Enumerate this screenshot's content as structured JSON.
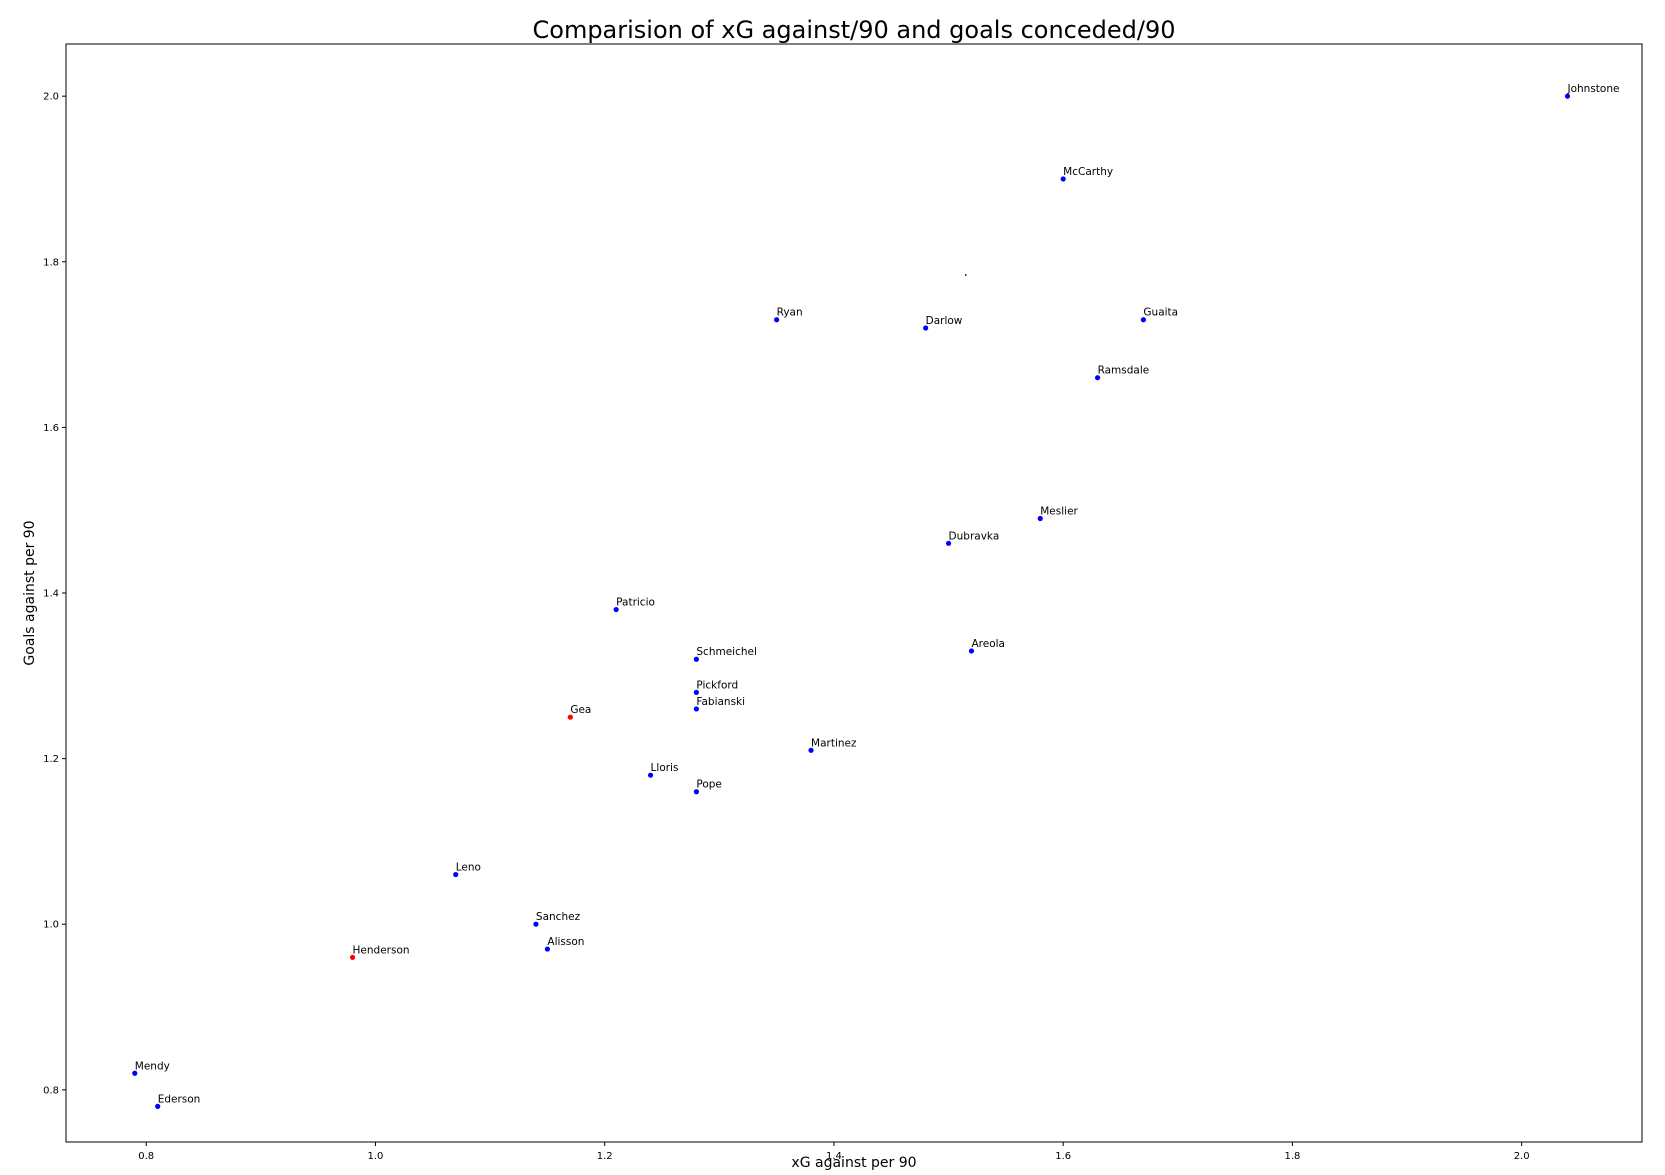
{
  "chart_data": {
    "type": "scatter",
    "title": "Comparision of xG against/90 and goals conceded/90",
    "xlabel": "xG against per 90",
    "ylabel": "Goals against per 90",
    "xlim": [
      0.73,
      2.105
    ],
    "ylim": [
      0.737,
      2.063
    ],
    "xticks": [
      {
        "value": 0.8,
        "label": "0.8"
      },
      {
        "value": 1.0,
        "label": "1.0"
      },
      {
        "value": 1.2,
        "label": "1.2"
      },
      {
        "value": 1.4,
        "label": "1.4"
      },
      {
        "value": 1.6,
        "label": "1.6"
      },
      {
        "value": 1.8,
        "label": "1.8"
      },
      {
        "value": 2.0,
        "label": "2.0"
      }
    ],
    "yticks": [
      {
        "value": 0.8,
        "label": "0.8"
      },
      {
        "value": 1.0,
        "label": "1.0"
      },
      {
        "value": 1.2,
        "label": "1.2"
      },
      {
        "value": 1.4,
        "label": "1.4"
      },
      {
        "value": 1.6,
        "label": "1.6"
      },
      {
        "value": 1.8,
        "label": "1.8"
      },
      {
        "value": 2.0,
        "label": "2.0"
      }
    ],
    "grid": false,
    "legend": "none",
    "colors": {
      "default": "#0000ff",
      "highlight": "#ff0000"
    },
    "points": [
      {
        "label": "Johnstone",
        "x": 2.04,
        "y": 2.0,
        "color": "#0000ff"
      },
      {
        "label": "McCarthy",
        "x": 1.6,
        "y": 1.9,
        "color": "#0000ff"
      },
      {
        "label": "Ryan",
        "x": 1.35,
        "y": 1.73,
        "color": "#0000ff"
      },
      {
        "label": "Darlow",
        "x": 1.48,
        "y": 1.72,
        "color": "#0000ff"
      },
      {
        "label": "Guaita",
        "x": 1.67,
        "y": 1.73,
        "color": "#0000ff"
      },
      {
        "label": "Ramsdale",
        "x": 1.63,
        "y": 1.66,
        "color": "#0000ff"
      },
      {
        "label": "Meslier",
        "x": 1.58,
        "y": 1.49,
        "color": "#0000ff"
      },
      {
        "label": "Dubravka",
        "x": 1.5,
        "y": 1.46,
        "color": "#0000ff"
      },
      {
        "label": "Patricio",
        "x": 1.21,
        "y": 1.38,
        "color": "#0000ff"
      },
      {
        "label": "Areola",
        "x": 1.52,
        "y": 1.33,
        "color": "#0000ff"
      },
      {
        "label": "Schmeichel",
        "x": 1.28,
        "y": 1.32,
        "color": "#0000ff"
      },
      {
        "label": "Pickford",
        "x": 1.28,
        "y": 1.28,
        "color": "#0000ff"
      },
      {
        "label": "Fabianski",
        "x": 1.28,
        "y": 1.26,
        "color": "#0000ff"
      },
      {
        "label": "Gea",
        "x": 1.17,
        "y": 1.25,
        "color": "#ff0000"
      },
      {
        "label": "Martinez",
        "x": 1.38,
        "y": 1.21,
        "color": "#0000ff"
      },
      {
        "label": "Lloris",
        "x": 1.24,
        "y": 1.18,
        "color": "#0000ff"
      },
      {
        "label": "Pope",
        "x": 1.28,
        "y": 1.16,
        "color": "#0000ff"
      },
      {
        "label": "Leno",
        "x": 1.07,
        "y": 1.06,
        "color": "#0000ff"
      },
      {
        "label": "Sanchez",
        "x": 1.14,
        "y": 1.0,
        "color": "#0000ff"
      },
      {
        "label": "Alisson",
        "x": 1.15,
        "y": 0.97,
        "color": "#0000ff"
      },
      {
        "label": "Henderson",
        "x": 0.98,
        "y": 0.96,
        "color": "#ff0000"
      },
      {
        "label": "Mendy",
        "x": 0.79,
        "y": 0.82,
        "color": "#0000ff"
      },
      {
        "label": "Ederson",
        "x": 0.81,
        "y": 0.78,
        "color": "#0000ff"
      }
    ],
    "stray_marks": [
      {
        "x": 1.515,
        "y": 1.784
      }
    ]
  }
}
